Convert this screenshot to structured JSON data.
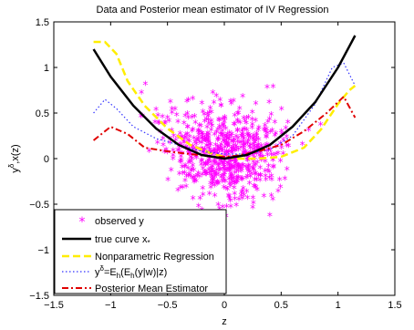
{
  "chart_data": {
    "type": "scatter",
    "title": "Data and Posterior mean estimator of IV Regression",
    "xlabel": "z",
    "ylabel_main": "y",
    "ylabel_sup": "δ",
    "ylabel_rest": ",x(z)",
    "xlim": [
      -1.5,
      1.5
    ],
    "ylim": [
      -1.5,
      1.5
    ],
    "xticks": [
      -1.5,
      -1,
      -0.5,
      0,
      0.5,
      1,
      1.5
    ],
    "yticks": [
      -1.5,
      -1,
      -0.5,
      0,
      0.5,
      1,
      1.5
    ],
    "xtick_labels": [
      "−1.5",
      "−1",
      "−0.5",
      "0",
      "0.5",
      "1",
      "1.5"
    ],
    "ytick_labels": [
      "−1.5",
      "−1",
      "−0.5",
      "0",
      "0.5",
      "1",
      "1.5"
    ],
    "grid": false,
    "legend_position": "bottom-left",
    "scatter": {
      "name": "observed y",
      "color": "#ff00ff",
      "count": 700,
      "z_range": [
        -1.15,
        1.15
      ],
      "noise_sd": 0.35
    },
    "series": [
      {
        "name": "true curve x*",
        "color": "#000000",
        "style": "solid",
        "x": [
          -1.15,
          -1.0,
          -0.8,
          -0.6,
          -0.4,
          -0.2,
          0.0,
          0.2,
          0.4,
          0.6,
          0.8,
          1.0,
          1.15
        ],
        "y": [
          1.2,
          0.9,
          0.58,
          0.33,
          0.15,
          0.04,
          0.0,
          0.04,
          0.15,
          0.35,
          0.62,
          1.0,
          1.35
        ]
      },
      {
        "name": "Nonparametric Regression",
        "color": "#ffee00",
        "style": "dashed",
        "x": [
          -1.15,
          -1.05,
          -0.95,
          -0.85,
          -0.7,
          -0.5,
          -0.3,
          -0.1,
          0.0,
          0.1,
          0.3,
          0.5,
          0.7,
          0.85,
          1.0,
          1.1,
          1.15
        ],
        "y": [
          1.28,
          1.28,
          1.15,
          0.85,
          0.58,
          0.33,
          0.15,
          0.05,
          0.02,
          0.0,
          0.0,
          0.02,
          0.12,
          0.32,
          0.6,
          0.75,
          0.8
        ]
      },
      {
        "name": "y^δ=E_h(E_h(y|w)|z)",
        "color": "#3333ff",
        "style": "dotted",
        "x": [
          -1.15,
          -1.05,
          -0.95,
          -0.8,
          -0.6,
          -0.4,
          -0.2,
          0.0,
          0.2,
          0.4,
          0.6,
          0.8,
          0.95,
          1.05,
          1.15
        ],
        "y": [
          0.5,
          0.65,
          0.55,
          0.35,
          0.22,
          0.15,
          0.08,
          0.05,
          0.05,
          0.1,
          0.25,
          0.6,
          1.0,
          1.05,
          0.8
        ]
      },
      {
        "name": "Posterior Mean Estimator",
        "color": "#e00000",
        "style": "dashdot",
        "x": [
          -1.15,
          -1.0,
          -0.85,
          -0.7,
          -0.5,
          -0.3,
          -0.1,
          0.0,
          0.1,
          0.3,
          0.5,
          0.7,
          0.9,
          1.05,
          1.15
        ],
        "y": [
          0.2,
          0.35,
          0.27,
          0.12,
          0.08,
          0.05,
          0.02,
          0.02,
          0.03,
          0.08,
          0.15,
          0.3,
          0.5,
          0.68,
          0.45
        ]
      }
    ],
    "legend": {
      "observed": "observed y",
      "true_main": "true curve x",
      "true_sub": "*",
      "nonparam": "Nonparametric Regression",
      "yd_a": "y",
      "yd_sup": "δ",
      "yd_b": "=E",
      "yd_sub1": "h",
      "yd_c": "(E",
      "yd_sub2": "h",
      "yd_d": "(y|w)|z)",
      "posterior": "Posterior Mean Estimator"
    }
  }
}
